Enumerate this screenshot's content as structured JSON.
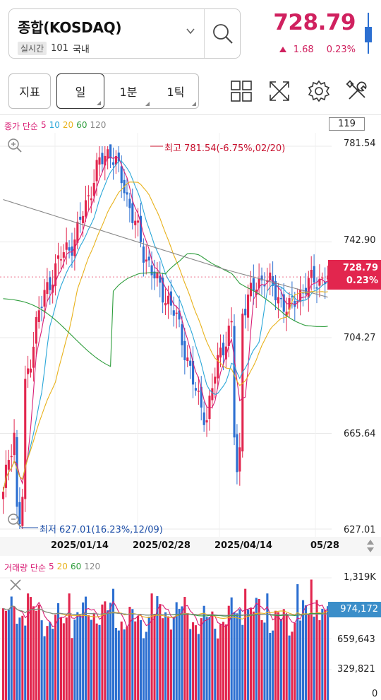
{
  "header": {
    "symbol_title": "종합(KOSDAQ)",
    "realtime_tag": "실시간",
    "code": "101",
    "market": "국내",
    "price": "728.79",
    "change": "1.68",
    "change_pct": "0.23%"
  },
  "toolbar": {
    "indicator_label": "지표",
    "periods": [
      "일",
      "1분",
      "1틱"
    ],
    "active_period": "일"
  },
  "price_chart": {
    "legend_prefix": "종가 단순",
    "ma_periods": [
      "5",
      "10",
      "20",
      "60",
      "120"
    ],
    "ma_colors": [
      "#d91e75",
      "#2aa7d8",
      "#e8b21c",
      "#2e9d3c",
      "#888888"
    ],
    "candle_count": "119",
    "y_labels": [
      "781.54",
      "742.90",
      "704.27",
      "665.64",
      "627.01"
    ],
    "current_price_tag": "728.79",
    "current_pct_tag": "0.23%",
    "high_annotation": "최고 781.54(-6.75%,02/20)",
    "low_annotation": "최저 627.01(16.23%,12/09)",
    "date_labels": [
      "2025/01/14",
      "2025/02/28",
      "2025/04/14",
      "05/28"
    ]
  },
  "volume_chart": {
    "legend_prefix": "거래량 단순",
    "ma_periods": [
      "5",
      "20",
      "60",
      "120"
    ],
    "ma_colors": [
      "#d91e75",
      "#e8b21c",
      "#2e9d3c",
      "#888888"
    ],
    "y_labels": [
      "1,319K",
      "659,643",
      "329,821",
      "0"
    ],
    "current_volume_tag": "974,172"
  },
  "colors": {
    "up": "#e2264e",
    "down": "#2c6fd1",
    "accent": "#d0215f"
  },
  "chart_data": {
    "type": "candlestick",
    "series_count": 119,
    "ylim": [
      627.01,
      781.54
    ],
    "close_path": [
      640,
      655,
      664,
      672,
      676,
      690,
      700,
      712,
      718,
      724,
      729,
      733,
      737,
      740,
      742,
      744,
      752,
      758,
      764,
      770,
      775,
      778,
      780,
      776,
      770,
      765,
      758,
      752,
      745,
      738,
      735,
      730,
      725,
      722,
      720,
      716,
      710,
      703,
      696,
      688,
      680,
      676,
      672,
      682,
      692,
      700,
      704,
      708,
      712,
      716,
      718,
      722,
      724,
      727,
      730,
      726,
      722,
      720,
      718,
      716,
      718,
      722,
      724,
      726,
      727,
      728,
      728,
      729
    ]
  }
}
